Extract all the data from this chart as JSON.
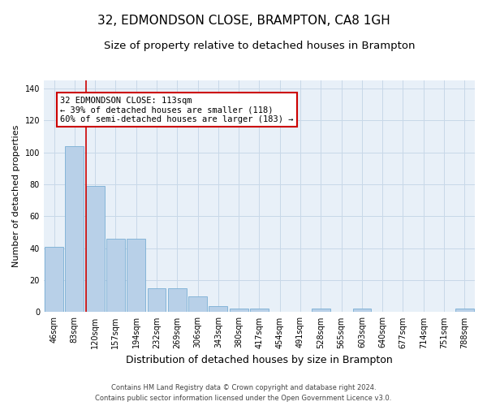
{
  "title": "32, EDMONDSON CLOSE, BRAMPTON, CA8 1GH",
  "subtitle": "Size of property relative to detached houses in Brampton",
  "xlabel": "Distribution of detached houses by size in Brampton",
  "ylabel": "Number of detached properties",
  "categories": [
    "46sqm",
    "83sqm",
    "120sqm",
    "157sqm",
    "194sqm",
    "232sqm",
    "269sqm",
    "306sqm",
    "343sqm",
    "380sqm",
    "417sqm",
    "454sqm",
    "491sqm",
    "528sqm",
    "565sqm",
    "603sqm",
    "640sqm",
    "677sqm",
    "714sqm",
    "751sqm",
    "788sqm"
  ],
  "values": [
    41,
    104,
    79,
    46,
    46,
    15,
    15,
    10,
    4,
    2,
    2,
    0,
    0,
    2,
    0,
    2,
    0,
    0,
    0,
    0,
    2
  ],
  "bar_color": "#b8d0e8",
  "bar_edge_color": "#7aafd4",
  "vline_color": "#cc0000",
  "vline_x_index": 2,
  "ylim": [
    0,
    145
  ],
  "yticks": [
    0,
    20,
    40,
    60,
    80,
    100,
    120,
    140
  ],
  "annotation_text": "32 EDMONDSON CLOSE: 113sqm\n← 39% of detached houses are smaller (118)\n60% of semi-detached houses are larger (183) →",
  "annotation_box_facecolor": "#ffffff",
  "annotation_box_edgecolor": "#cc0000",
  "grid_color": "#c8d8e8",
  "bg_color": "#e8f0f8",
  "footer_line1": "Contains HM Land Registry data © Crown copyright and database right 2024.",
  "footer_line2": "Contains public sector information licensed under the Open Government Licence v3.0.",
  "title_fontsize": 11,
  "subtitle_fontsize": 9.5,
  "xlabel_fontsize": 9,
  "ylabel_fontsize": 8,
  "tick_fontsize": 7,
  "annotation_fontsize": 7.5,
  "footer_fontsize": 6
}
